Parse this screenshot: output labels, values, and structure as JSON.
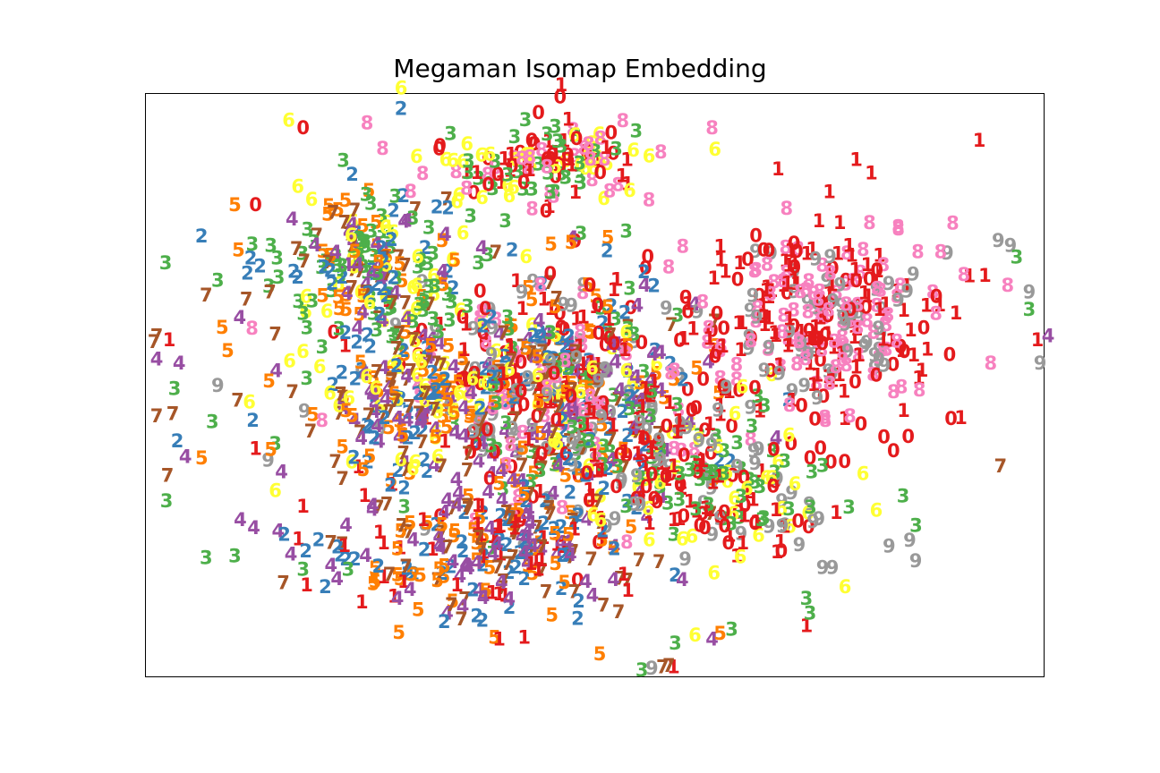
{
  "chart_data": {
    "type": "scatter",
    "title": "Megaman Isomap Embedding",
    "xlabel": "",
    "ylabel": "",
    "axes_ticks_visible": false,
    "grid": false,
    "xlim": [
      0,
      100
    ],
    "ylim": [
      0,
      100
    ],
    "marker": "digit label (0-9)",
    "class_colors": {
      "0": "#e41a1c",
      "1": "#e41a1c",
      "2": "#377eb8",
      "3": "#4daf4a",
      "4": "#984ea3",
      "5": "#ff7f00",
      "6": "#ffff33",
      "7": "#a65628",
      "8": "#f781bf",
      "9": "#999999"
    },
    "points": [
      {
        "label": "6",
        "x": 28.5,
        "y": 101.0
      },
      {
        "label": "2",
        "x": 28.5,
        "y": 97.5
      },
      {
        "label": "1",
        "x": 46.3,
        "y": 101.5
      },
      {
        "label": "0",
        "x": 46.2,
        "y": 99.5
      },
      {
        "label": "8",
        "x": 63.1,
        "y": 94.2
      },
      {
        "label": "0",
        "x": 17.6,
        "y": 94.2
      },
      {
        "label": "6",
        "x": 16.0,
        "y": 95.5
      },
      {
        "label": "8",
        "x": 24.7,
        "y": 95.0
      },
      {
        "label": "8",
        "x": 57.4,
        "y": 90.0
      },
      {
        "label": "3",
        "x": 2.3,
        "y": 71.0
      },
      {
        "label": "3",
        "x": 8.1,
        "y": 68.0
      },
      {
        "label": "7",
        "x": 6.8,
        "y": 65.5
      },
      {
        "label": "7",
        "x": 1.0,
        "y": 57.5
      },
      {
        "label": "7",
        "x": 1.3,
        "y": 58.5
      },
      {
        "label": "1",
        "x": 2.7,
        "y": 57.8
      },
      {
        "label": "4",
        "x": 1.3,
        "y": 54.5
      },
      {
        "label": "4",
        "x": 3.8,
        "y": 53.8
      },
      {
        "label": "3",
        "x": 3.3,
        "y": 49.5
      },
      {
        "label": "7",
        "x": 1.3,
        "y": 44.8
      },
      {
        "label": "7",
        "x": 3.1,
        "y": 45.2
      },
      {
        "label": "2",
        "x": 3.6,
        "y": 40.5
      },
      {
        "label": "4",
        "x": 4.5,
        "y": 37.8
      },
      {
        "label": "5",
        "x": 6.3,
        "y": 37.6
      },
      {
        "label": "7",
        "x": 2.5,
        "y": 34.6
      },
      {
        "label": "3",
        "x": 6.8,
        "y": 20.5
      },
      {
        "label": "3",
        "x": 10.0,
        "y": 20.8
      },
      {
        "label": "7",
        "x": 15.4,
        "y": 16.2
      },
      {
        "label": "9",
        "x": 8.1,
        "y": 50.0
      },
      {
        "label": "5",
        "x": 8.6,
        "y": 60.0
      },
      {
        "label": "5",
        "x": 9.2,
        "y": 56.0
      },
      {
        "label": "5",
        "x": 10.0,
        "y": 81.0
      },
      {
        "label": "5",
        "x": 10.4,
        "y": 73.2
      },
      {
        "label": "0",
        "x": 12.3,
        "y": 81.0
      },
      {
        "label": "9",
        "x": 96.3,
        "y": 74.0
      },
      {
        "label": "3",
        "x": 97.0,
        "y": 72.0
      },
      {
        "label": "4",
        "x": 100.5,
        "y": 58.5
      },
      {
        "label": "1",
        "x": 99.3,
        "y": 57.8
      },
      {
        "label": "9",
        "x": 99.6,
        "y": 53.8
      },
      {
        "label": "9",
        "x": 98.4,
        "y": 66.0
      },
      {
        "label": "3",
        "x": 98.4,
        "y": 63.0
      },
      {
        "label": "8",
        "x": 96.0,
        "y": 67.2
      },
      {
        "label": "8",
        "x": 94.1,
        "y": 53.8
      },
      {
        "label": "7",
        "x": 95.2,
        "y": 36.2
      },
      {
        "label": "1",
        "x": 90.8,
        "y": 44.5
      },
      {
        "label": "0",
        "x": 89.7,
        "y": 44.3
      },
      {
        "label": "0",
        "x": 83.3,
        "y": 38.8
      },
      {
        "label": "3",
        "x": 85.8,
        "y": 26.0
      },
      {
        "label": "9",
        "x": 85.1,
        "y": 23.5
      },
      {
        "label": "9",
        "x": 82.8,
        "y": 22.5
      },
      {
        "label": "6",
        "x": 77.9,
        "y": 15.5
      },
      {
        "label": "9",
        "x": 75.4,
        "y": 18.8
      },
      {
        "label": "9",
        "x": 76.5,
        "y": 18.8
      },
      {
        "label": "3",
        "x": 73.6,
        "y": 13.5
      },
      {
        "label": "1",
        "x": 73.6,
        "y": 8.8
      },
      {
        "label": "3",
        "x": 74.0,
        "y": 11.0
      },
      {
        "label": "5",
        "x": 50.6,
        "y": 4.0
      },
      {
        "label": "3",
        "x": 55.3,
        "y": 1.2
      },
      {
        "label": "9",
        "x": 56.4,
        "y": 1.5
      },
      {
        "label": "7",
        "x": 57.6,
        "y": 1.8
      },
      {
        "label": "1",
        "x": 58.8,
        "y": 1.8
      },
      {
        "label": "7",
        "x": 58.3,
        "y": 2.0
      },
      {
        "label": "1",
        "x": 42.2,
        "y": 6.8
      },
      {
        "label": "5",
        "x": 38.9,
        "y": 6.8
      },
      {
        "label": "1",
        "x": 39.4,
        "y": 6.5
      },
      {
        "label": "3",
        "x": 59.0,
        "y": 5.8
      },
      {
        "label": "6",
        "x": 61.2,
        "y": 7.2
      },
      {
        "label": "4",
        "x": 63.1,
        "y": 6.5
      },
      {
        "label": "5",
        "x": 64.0,
        "y": 7.5
      },
      {
        "label": "3",
        "x": 65.3,
        "y": 8.2
      },
      {
        "label": "2",
        "x": 33.3,
        "y": 9.5
      },
      {
        "label": "7",
        "x": 35.2,
        "y": 10.0
      },
      {
        "label": "5",
        "x": 30.4,
        "y": 11.6
      },
      {
        "label": "4",
        "x": 28.1,
        "y": 13.5
      },
      {
        "label": "4",
        "x": 29.5,
        "y": 15.0
      },
      {
        "label": "5",
        "x": 25.4,
        "y": 16.0
      },
      {
        "label": "7",
        "x": 27.2,
        "y": 17.6
      },
      {
        "label": "3",
        "x": 22.6,
        "y": 18.5
      },
      {
        "label": "3",
        "x": 17.6,
        "y": 18.5
      },
      {
        "label": "4",
        "x": 20.7,
        "y": 19.2
      },
      {
        "label": "2",
        "x": 17.9,
        "y": 21.6
      },
      {
        "label": "4",
        "x": 10.6,
        "y": 27.0
      },
      {
        "label": "4",
        "x": 12.1,
        "y": 25.6
      },
      {
        "label": "2",
        "x": 15.5,
        "y": 24.5
      },
      {
        "label": "6",
        "x": 14.5,
        "y": 32.0
      },
      {
        "label": "1",
        "x": 12.3,
        "y": 39.2
      },
      {
        "label": "3",
        "x": 14.5,
        "y": 40.0
      },
      {
        "label": "9",
        "x": 13.7,
        "y": 37.2
      },
      {
        "label": "5",
        "x": 14.0,
        "y": 39.0
      },
      {
        "label": "4",
        "x": 15.2,
        "y": 35.2
      },
      {
        "label": "7",
        "x": 10.3,
        "y": 47.5
      },
      {
        "label": "6",
        "x": 11.6,
        "y": 47.2
      },
      {
        "label": "3",
        "x": 7.5,
        "y": 43.8
      },
      {
        "label": "2",
        "x": 12.0,
        "y": 44.0
      },
      {
        "label": "5",
        "x": 18.7,
        "y": 45.0
      },
      {
        "label": "8",
        "x": 19.7,
        "y": 44.0
      },
      {
        "label": "2",
        "x": 12.8,
        "y": 70.5
      },
      {
        "label": "7",
        "x": 13.9,
        "y": 66.0
      },
      {
        "label": "8",
        "x": 11.9,
        "y": 59.8
      },
      {
        "label": "7",
        "x": 14.5,
        "y": 58.8
      },
      {
        "label": "6",
        "x": 16.1,
        "y": 54.2
      },
      {
        "label": "4",
        "x": 14.6,
        "y": 52.5
      },
      {
        "label": "5",
        "x": 13.8,
        "y": 50.8
      },
      {
        "label": "3",
        "x": 18.0,
        "y": 51.2
      },
      {
        "label": "3",
        "x": 2.4,
        "y": 30.2
      }
    ]
  }
}
